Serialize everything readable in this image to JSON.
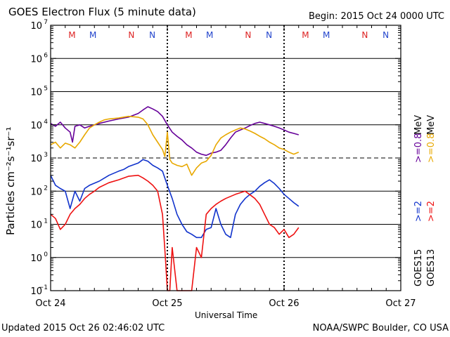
{
  "header": {
    "title": "GOES Electron Flux (5 minute data)",
    "begin": "Begin: 2015 Oct 24 0000 UTC"
  },
  "footer": {
    "updated": "Updated 2015 Oct 26 02:46:02 UTC",
    "credit": "NOAA/SWPC Boulder, CO USA"
  },
  "legend": {
    "goes15": "GOES15",
    "goes13": "GOES13",
    "ge2": ">=2",
    "ge08": ">=0.8",
    "unit": "MeV"
  },
  "chart_data": {
    "type": "line",
    "title": "GOES Electron Flux (5 minute data)",
    "xlabel": "Universal Time",
    "ylabel": "Particles cm⁻²s⁻¹sr⁻¹",
    "yscale": "log",
    "ylim": [
      0.1,
      10000000
    ],
    "xlim_hours": [
      0,
      72
    ],
    "x_ticks": [
      {
        "hour": 0,
        "label": "Oct 24"
      },
      {
        "hour": 24,
        "label": "Oct 25"
      },
      {
        "hour": 48,
        "label": "Oct 26"
      },
      {
        "hour": 72,
        "label": "Oct 27"
      }
    ],
    "y_ticks": [
      {
        "value": 0.1,
        "mantissa": "10",
        "exp": "−1"
      },
      {
        "value": 1,
        "mantissa": "10",
        "exp": "0"
      },
      {
        "value": 10,
        "mantissa": "10",
        "exp": "1"
      },
      {
        "value": 100,
        "mantissa": "10",
        "exp": "2"
      },
      {
        "value": 1000,
        "mantissa": "10",
        "exp": "3"
      },
      {
        "value": 10000,
        "mantissa": "10",
        "exp": "4"
      },
      {
        "value": 100000,
        "mantissa": "10",
        "exp": "5"
      },
      {
        "value": 1000000,
        "mantissa": "10",
        "exp": "6"
      },
      {
        "value": 10000000,
        "mantissa": "10",
        "exp": "7"
      }
    ],
    "grid": "horizontal decades",
    "dashed_threshold": 1000,
    "midnight_markers_hours": [
      24,
      48
    ],
    "local_time_markers": [
      {
        "hour": 4.4,
        "label": "M",
        "color": "#dd2222"
      },
      {
        "hour": 8.7,
        "label": "M",
        "color": "#2244cc"
      },
      {
        "hour": 16.6,
        "label": "N",
        "color": "#dd2222"
      },
      {
        "hour": 20.9,
        "label": "N",
        "color": "#2244cc"
      },
      {
        "hour": 28.4,
        "label": "M",
        "color": "#dd2222"
      },
      {
        "hour": 32.7,
        "label": "M",
        "color": "#2244cc"
      },
      {
        "hour": 40.6,
        "label": "N",
        "color": "#dd2222"
      },
      {
        "hour": 44.9,
        "label": "N",
        "color": "#2244cc"
      },
      {
        "hour": 52.4,
        "label": "M",
        "color": "#dd2222"
      },
      {
        "hour": 56.7,
        "label": "M",
        "color": "#2244cc"
      },
      {
        "hour": 64.6,
        "label": "N",
        "color": "#dd2222"
      },
      {
        "hour": 68.9,
        "label": "N",
        "color": "#2244cc"
      }
    ],
    "series": [
      {
        "name": "GOES15 >=0.8 MeV",
        "color": "#660099",
        "points": [
          [
            0,
            11000
          ],
          [
            1,
            9000
          ],
          [
            2,
            12000
          ],
          [
            3,
            8000
          ],
          [
            4,
            6000
          ],
          [
            4.5,
            3000
          ],
          [
            5,
            9000
          ],
          [
            6,
            10000
          ],
          [
            7,
            8000
          ],
          [
            8,
            9000
          ],
          [
            10,
            11000
          ],
          [
            12,
            13000
          ],
          [
            14,
            15000
          ],
          [
            16,
            17000
          ],
          [
            18,
            22000
          ],
          [
            19,
            28000
          ],
          [
            20,
            35000
          ],
          [
            21,
            30000
          ],
          [
            22,
            25000
          ],
          [
            23,
            18000
          ],
          [
            24,
            10000
          ],
          [
            25,
            6000
          ],
          [
            26,
            4500
          ],
          [
            27,
            3500
          ],
          [
            28,
            2500
          ],
          [
            29,
            2000
          ],
          [
            30,
            1500
          ],
          [
            31,
            1300
          ],
          [
            32,
            1200
          ],
          [
            33,
            1400
          ],
          [
            34,
            1500
          ],
          [
            35,
            1700
          ],
          [
            36,
            2500
          ],
          [
            37,
            4000
          ],
          [
            38,
            6000
          ],
          [
            39,
            7000
          ],
          [
            40,
            8000
          ],
          [
            41,
            9500
          ],
          [
            42,
            11000
          ],
          [
            43,
            12000
          ],
          [
            44,
            11000
          ],
          [
            45,
            10000
          ],
          [
            46,
            9000
          ],
          [
            47,
            8000
          ],
          [
            48,
            7000
          ],
          [
            49,
            6000
          ],
          [
            50,
            5500
          ],
          [
            51,
            5000
          ]
        ]
      },
      {
        "name": "GOES13 >=0.8 MeV",
        "color": "#e8a800",
        "points": [
          [
            0,
            2500
          ],
          [
            1,
            3000
          ],
          [
            2,
            2000
          ],
          [
            3,
            2800
          ],
          [
            4,
            2500
          ],
          [
            5,
            2000
          ],
          [
            6,
            3000
          ],
          [
            7,
            5000
          ],
          [
            8,
            8000
          ],
          [
            9,
            10000
          ],
          [
            10,
            12000
          ],
          [
            11,
            14000
          ],
          [
            12,
            15000
          ],
          [
            14,
            16000
          ],
          [
            16,
            18000
          ],
          [
            18,
            17000
          ],
          [
            19,
            15000
          ],
          [
            20,
            10000
          ],
          [
            21,
            5000
          ],
          [
            22,
            3000
          ],
          [
            23,
            1800
          ],
          [
            23.5,
            1100
          ],
          [
            24,
            6000
          ],
          [
            24.5,
            900
          ],
          [
            25,
            700
          ],
          [
            26,
            600
          ],
          [
            27,
            550
          ],
          [
            28,
            650
          ],
          [
            29,
            300
          ],
          [
            30,
            500
          ],
          [
            31,
            700
          ],
          [
            32,
            800
          ],
          [
            33,
            1200
          ],
          [
            34,
            2500
          ],
          [
            35,
            4000
          ],
          [
            36,
            5000
          ],
          [
            37,
            6000
          ],
          [
            38,
            7000
          ],
          [
            39,
            8000
          ],
          [
            40,
            7500
          ],
          [
            41,
            6500
          ],
          [
            42,
            5500
          ],
          [
            43,
            4500
          ],
          [
            44,
            3800
          ],
          [
            45,
            3000
          ],
          [
            46,
            2500
          ],
          [
            47,
            2000
          ],
          [
            48,
            1800
          ],
          [
            49,
            1500
          ],
          [
            50,
            1300
          ],
          [
            51,
            1500
          ]
        ]
      },
      {
        "name": "GOES15 >=2 MeV",
        "color": "#1133cc",
        "points": [
          [
            0,
            300
          ],
          [
            1,
            150
          ],
          [
            2,
            120
          ],
          [
            3,
            100
          ],
          [
            4,
            30
          ],
          [
            5,
            100
          ],
          [
            6,
            50
          ],
          [
            7,
            120
          ],
          [
            8,
            150
          ],
          [
            10,
            200
          ],
          [
            12,
            300
          ],
          [
            14,
            400
          ],
          [
            15,
            450
          ],
          [
            16,
            550
          ],
          [
            18,
            700
          ],
          [
            19,
            900
          ],
          [
            20,
            800
          ],
          [
            21,
            600
          ],
          [
            22,
            500
          ],
          [
            23,
            400
          ],
          [
            24,
            150
          ],
          [
            25,
            60
          ],
          [
            26,
            20
          ],
          [
            27,
            10
          ],
          [
            28,
            6
          ],
          [
            29,
            5
          ],
          [
            30,
            4
          ],
          [
            31,
            4
          ],
          [
            32,
            7
          ],
          [
            33,
            8
          ],
          [
            34,
            30
          ],
          [
            35,
            10
          ],
          [
            36,
            5
          ],
          [
            37,
            4
          ],
          [
            38,
            20
          ],
          [
            39,
            40
          ],
          [
            40,
            60
          ],
          [
            41,
            80
          ],
          [
            42,
            100
          ],
          [
            43,
            140
          ],
          [
            44,
            180
          ],
          [
            45,
            220
          ],
          [
            46,
            170
          ],
          [
            47,
            120
          ],
          [
            48,
            80
          ],
          [
            49,
            60
          ],
          [
            50,
            45
          ],
          [
            51,
            35
          ]
        ]
      },
      {
        "name": "GOES13 >=2 MeV",
        "color": "#ee1111",
        "points": [
          [
            0,
            20
          ],
          [
            1,
            15
          ],
          [
            2,
            7
          ],
          [
            3,
            10
          ],
          [
            4,
            20
          ],
          [
            5,
            30
          ],
          [
            6,
            40
          ],
          [
            7,
            60
          ],
          [
            8,
            80
          ],
          [
            9,
            100
          ],
          [
            10,
            130
          ],
          [
            12,
            180
          ],
          [
            14,
            220
          ],
          [
            16,
            280
          ],
          [
            18,
            300
          ],
          [
            19,
            250
          ],
          [
            20,
            200
          ],
          [
            21,
            150
          ],
          [
            22,
            100
          ],
          [
            23,
            20
          ],
          [
            23.6,
            1
          ],
          [
            24,
            0.1
          ],
          [
            24.5,
            0.1
          ],
          [
            25,
            2
          ],
          [
            26,
            0.1
          ],
          [
            27,
            0.1
          ],
          [
            28,
            0.1
          ],
          [
            29,
            0.1
          ],
          [
            30,
            2
          ],
          [
            31,
            1
          ],
          [
            32,
            20
          ],
          [
            33,
            30
          ],
          [
            34,
            40
          ],
          [
            35,
            50
          ],
          [
            36,
            60
          ],
          [
            38,
            80
          ],
          [
            40,
            100
          ],
          [
            42,
            60
          ],
          [
            43,
            40
          ],
          [
            44,
            20
          ],
          [
            45,
            10
          ],
          [
            46,
            8
          ],
          [
            47,
            5
          ],
          [
            48,
            7
          ],
          [
            49,
            4
          ],
          [
            50,
            5
          ],
          [
            51,
            8
          ]
        ]
      }
    ]
  }
}
